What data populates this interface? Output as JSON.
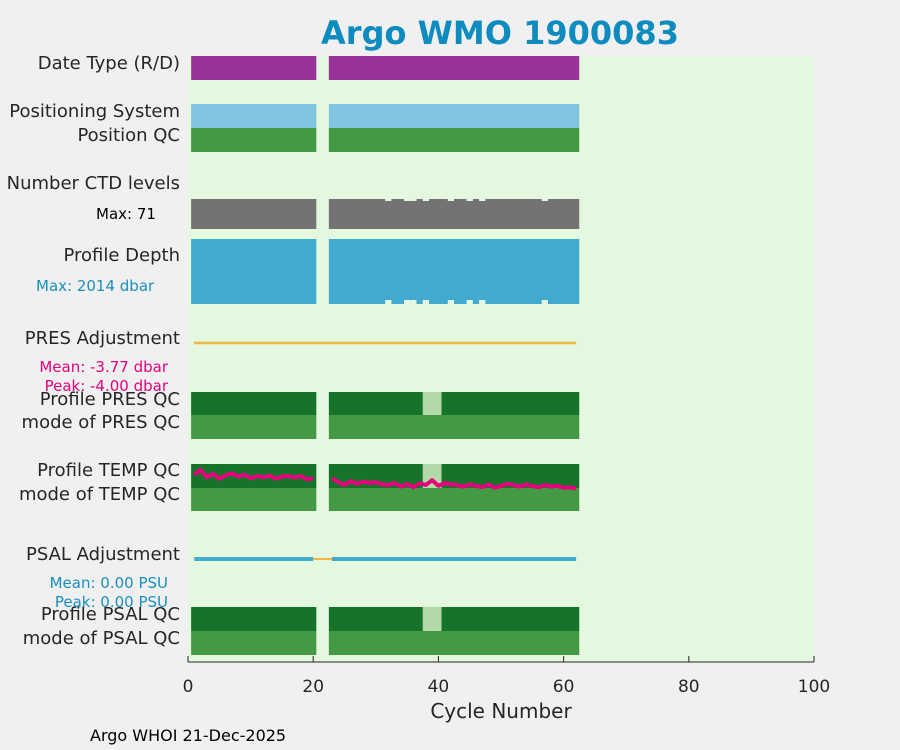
{
  "chart_data": {
    "type": "timeline",
    "title": "Argo WMO 1900083",
    "xlabel": "Cycle Number",
    "xlim": [
      0,
      100
    ],
    "xticks": [
      0,
      20,
      40,
      60,
      80,
      100
    ],
    "xtick_labels": [
      "0",
      "20",
      "40",
      "60",
      "80",
      "100"
    ],
    "cycles_present": [
      [
        1,
        20
      ],
      [
        23,
        62
      ]
    ],
    "missing_cycles": [
      21,
      22
    ],
    "rows": [
      {
        "id": "date-type",
        "label": "Date Type (R/D)",
        "color": "#993399"
      },
      {
        "id": "positioning-system",
        "label": "Positioning System",
        "color": "#80c4e0"
      },
      {
        "id": "position-qc",
        "label": "Position QC",
        "color": "#449944"
      },
      {
        "id": "number-ctd-levels",
        "label": "Number CTD levels",
        "color": "#737373",
        "annotation": "Max: 71",
        "max": 71
      },
      {
        "id": "profile-depth",
        "label": "Profile Depth",
        "color": "#42a9cf",
        "annotation": "Max: 2014 dbar",
        "max": 2014
      },
      {
        "id": "pres-adjustment",
        "label": "PRES Adjustment",
        "color": "#f0b840",
        "mean_text": "Mean: -3.77 dbar",
        "peak_text": "Peak: -4.00 dbar",
        "mean": -3.77,
        "peak": -4.0
      },
      {
        "id": "profile-pres-qc",
        "label": "Profile PRES QC",
        "color": "#16742a",
        "flagged_cycles": [
          38,
          39,
          40
        ]
      },
      {
        "id": "mode-pres-qc",
        "label": "mode of PRES QC",
        "color": "#449944"
      },
      {
        "id": "profile-temp-qc",
        "label": "Profile TEMP QC",
        "color": "#16742a",
        "flagged_cycles": [
          38,
          39,
          40
        ]
      },
      {
        "id": "mode-temp-qc",
        "label": "mode of TEMP QC",
        "color": "#449944"
      },
      {
        "id": "psal-adjustment",
        "label": "PSAL Adjustment",
        "color": "#42a9cf",
        "mean_text": "Mean: 0.00 PSU",
        "peak_text": "Peak: 0.00 PSU",
        "mean": 0.0,
        "peak": 0.0
      },
      {
        "id": "profile-psal-qc",
        "label": "Profile PSAL QC",
        "color": "#16742a",
        "flagged_cycles": [
          38,
          39,
          40
        ]
      },
      {
        "id": "mode-psal-qc",
        "label": "mode of PSAL QC",
        "color": "#449944"
      }
    ],
    "ctd_levels_short_cycles": [
      32,
      35,
      36,
      38,
      42,
      45,
      47,
      57
    ],
    "temp_trace": {
      "color": "#e6007e",
      "series_a": {
        "x": [
          1,
          2,
          3,
          4,
          5,
          6,
          7,
          8,
          9,
          10,
          11,
          12,
          13,
          14,
          15,
          16,
          17,
          18,
          19,
          20
        ],
        "y": [
          0.55,
          0.72,
          0.45,
          0.58,
          0.4,
          0.52,
          0.6,
          0.48,
          0.55,
          0.42,
          0.5,
          0.45,
          0.52,
          0.4,
          0.48,
          0.5,
          0.45,
          0.5,
          0.38,
          0.42
        ]
      },
      "series_b": {
        "x": [
          23,
          24,
          25,
          26,
          27,
          28,
          29,
          30,
          31,
          32,
          33,
          34,
          35,
          36,
          37,
          38,
          39,
          40,
          41,
          42,
          43,
          44,
          45,
          46,
          47,
          48,
          49,
          50,
          51,
          52,
          53,
          54,
          55,
          56,
          57,
          58,
          59,
          60,
          61,
          62
        ],
        "y": [
          0.42,
          0.28,
          0.18,
          0.32,
          0.22,
          0.3,
          0.25,
          0.28,
          0.2,
          0.18,
          0.25,
          0.12,
          0.22,
          0.1,
          0.24,
          0.18,
          0.35,
          0.15,
          0.25,
          0.2,
          0.18,
          0.12,
          0.2,
          0.15,
          0.1,
          0.2,
          0.08,
          0.15,
          0.22,
          0.18,
          0.12,
          0.2,
          0.14,
          0.1,
          0.18,
          0.12,
          0.15,
          0.08,
          0.1,
          0.05
        ]
      }
    },
    "plot_background": "#e4f8df",
    "flag_color": "#b4d9a8",
    "title_color": "#0e8bbf",
    "depth_annotation_color": "#1a8fc0",
    "pres_annotation_color": "#e6007e",
    "psal_annotation_color": "#1a8fc0"
  },
  "footer": {
    "text": "Argo WHOI 21-Dec-2025"
  }
}
